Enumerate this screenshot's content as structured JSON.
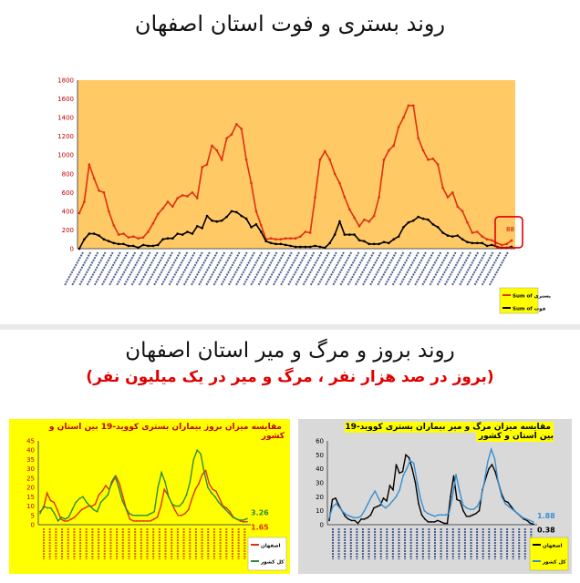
{
  "top": {
    "title": "روند بستری و فوت استان اصفهان"
  },
  "bottom": {
    "title": "روند بروز و مرگ و میر استان اصفهان",
    "subtitle": "(بروز در صد هزار نفر ، مرگ و میر در یک میلیون نفر)"
  },
  "chart_data": [
    {
      "type": "line",
      "title": "",
      "ylim": [
        0,
        1800
      ],
      "yticks": [
        0,
        200,
        400,
        600,
        800,
        1000,
        1200,
        1400,
        1600,
        1800
      ],
      "background": "#ffc966",
      "highlight_label": "88",
      "legend": {
        "placement": "bottom-right"
      },
      "series": [
        {
          "name": "Sum of بستری",
          "color": "#e03010",
          "values": [
            380,
            500,
            900,
            750,
            620,
            600,
            400,
            250,
            150,
            160,
            120,
            130,
            110,
            120,
            180,
            270,
            370,
            430,
            500,
            450,
            540,
            570,
            560,
            600,
            540,
            870,
            900,
            1100,
            1050,
            950,
            1180,
            1220,
            1330,
            1280,
            950,
            700,
            400,
            250,
            100,
            110,
            100,
            100,
            110,
            110,
            110,
            130,
            180,
            170,
            550,
            950,
            1040,
            950,
            800,
            700,
            550,
            420,
            330,
            240,
            310,
            290,
            350,
            550,
            950,
            1050,
            1100,
            1300,
            1400,
            1530,
            1530,
            1180,
            1050,
            950,
            960,
            900,
            650,
            550,
            600,
            450,
            400,
            280,
            170,
            180,
            130,
            100,
            90,
            60,
            40,
            50,
            88
          ]
        },
        {
          "name": "Sum of فوت",
          "color": "#000000",
          "values": [
            0,
            100,
            160,
            160,
            140,
            100,
            80,
            60,
            50,
            50,
            30,
            30,
            10,
            40,
            30,
            30,
            40,
            100,
            110,
            110,
            160,
            150,
            180,
            160,
            240,
            220,
            350,
            300,
            290,
            300,
            340,
            400,
            390,
            350,
            320,
            230,
            260,
            180,
            80,
            60,
            50,
            50,
            40,
            30,
            20,
            20,
            20,
            20,
            30,
            20,
            10,
            60,
            150,
            290,
            150,
            150,
            150,
            90,
            80,
            50,
            50,
            50,
            70,
            60,
            100,
            130,
            230,
            280,
            300,
            340,
            320,
            310,
            260,
            230,
            170,
            140,
            130,
            140,
            100,
            70,
            60,
            60,
            60,
            30,
            40,
            20,
            10,
            10,
            20
          ]
        }
      ]
    },
    {
      "type": "line",
      "title": "مقایسه میزان بروز بیماران بستری کووید-19 بین استان و کشور",
      "ylim": [
        0,
        45
      ],
      "yticks": [
        0,
        5,
        10,
        15,
        20,
        25,
        30,
        35,
        40,
        45
      ],
      "background": "#ffff00",
      "legend": {
        "placement": "bottom-right"
      },
      "series": [
        {
          "name": "اصفهان",
          "color": "#e03010",
          "end_label": "1.65",
          "values": [
            7,
            9,
            17,
            13,
            12,
            8,
            3,
            2,
            2,
            3,
            4,
            6,
            8,
            9,
            10,
            10,
            11,
            16,
            18,
            21,
            19,
            23,
            26,
            22,
            15,
            8,
            3,
            2,
            2,
            2,
            2,
            2,
            2,
            3,
            4,
            10,
            19,
            16,
            12,
            8,
            5,
            5,
            6,
            8,
            14,
            19,
            22,
            27,
            29,
            22,
            19,
            18,
            14,
            10,
            9,
            7,
            4,
            3,
            2,
            1.5,
            1.65
          ]
        },
        {
          "name": "کل کشور",
          "color": "#2e8b3e",
          "end_label": "3.26",
          "values": [
            6,
            10,
            9,
            9,
            6,
            2,
            4,
            3,
            4,
            8,
            12,
            14,
            15,
            12,
            10,
            8,
            7,
            12,
            14,
            16,
            23,
            26,
            20,
            13,
            9,
            6,
            5,
            5,
            5,
            5,
            5,
            6,
            7,
            20,
            28,
            23,
            15,
            11,
            10,
            10,
            12,
            16,
            23,
            35,
            40,
            38,
            28,
            20,
            17,
            15,
            12,
            10,
            8,
            6,
            4,
            3,
            2.5,
            2.5,
            3.26
          ]
        }
      ]
    },
    {
      "type": "line",
      "title": "مقایسه میزان مرگ و میر بیماران بستری کووید-19 بین استان و کشور",
      "ylim": [
        0,
        60
      ],
      "yticks": [
        0,
        10,
        20,
        30,
        40,
        50,
        60
      ],
      "background": "#d9d9d9",
      "legend": {
        "placement": "bottom-right"
      },
      "series": [
        {
          "name": "اصفهان",
          "color": "#000000",
          "end_label": "0.38",
          "values": [
            3,
            18,
            19,
            14,
            10,
            6,
            4,
            3,
            3,
            1,
            4,
            4,
            5,
            7,
            12,
            13,
            14,
            19,
            17,
            28,
            25,
            43,
            37,
            38,
            50,
            48,
            40,
            30,
            15,
            7,
            4,
            2,
            2,
            2,
            3,
            2,
            1,
            1,
            20,
            35,
            18,
            17,
            10,
            6,
            6,
            7,
            8,
            10,
            25,
            33,
            40,
            43,
            38,
            30,
            22,
            17,
            16,
            13,
            10,
            8,
            6,
            4,
            3,
            1,
            0.38
          ]
        },
        {
          "name": "کل کشور",
          "color": "#3a8fd0",
          "end_label": "1.88",
          "values": [
            5,
            13,
            15,
            12,
            9,
            7,
            6,
            5,
            5,
            6,
            10,
            15,
            20,
            24,
            19,
            14,
            12,
            14,
            17,
            20,
            25,
            35,
            40,
            46,
            44,
            30,
            18,
            10,
            8,
            7,
            6,
            7,
            7,
            7,
            8,
            20,
            36,
            24,
            14,
            12,
            11,
            11,
            13,
            18,
            30,
            45,
            54,
            47,
            30,
            20,
            15,
            13,
            11,
            9,
            7,
            5,
            4,
            3,
            1.88
          ]
        }
      ]
    }
  ]
}
